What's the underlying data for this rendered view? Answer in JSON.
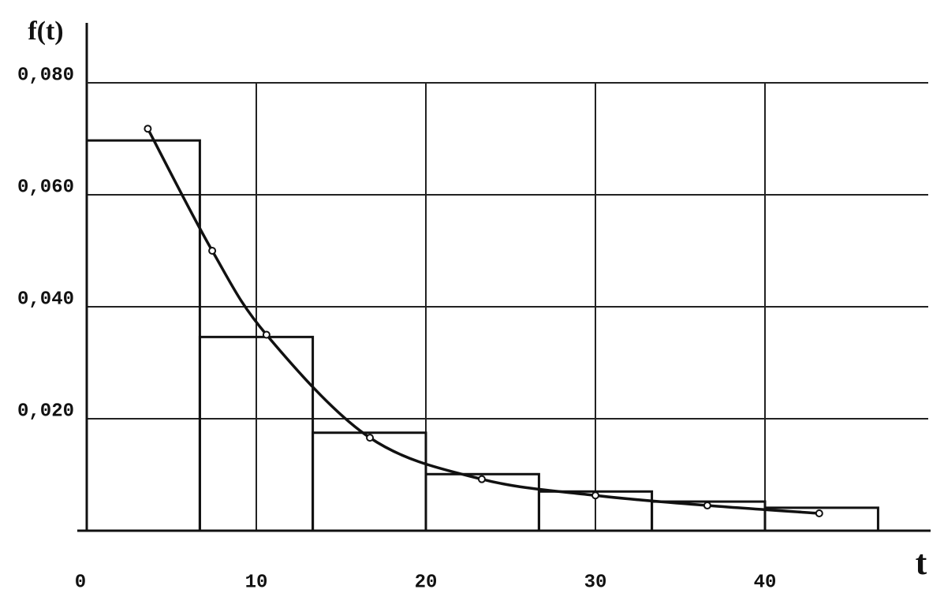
{
  "chart_data": {
    "type": "histogram",
    "y_label": "f(t)",
    "x_label": "t",
    "bins": [
      0,
      6.67,
      13.33,
      20,
      26.67,
      33.33,
      40,
      46.67
    ],
    "values": [
      0.0697,
      0.0346,
      0.0175,
      0.0101,
      0.007,
      0.0052,
      0.0041
    ],
    "curve": {
      "x": [
        3.6,
        7.4,
        10.6,
        16.7,
        23.3,
        30,
        36.6,
        43.2
      ],
      "y": [
        0.0718,
        0.05,
        0.035,
        0.0166,
        0.0092,
        0.0063,
        0.0045,
        0.0031
      ]
    },
    "color": "#111111",
    "xlim": [
      0,
      50
    ],
    "ylim": [
      0,
      0.09
    ],
    "xticks": [
      0,
      10,
      20,
      30,
      40
    ],
    "yticks": [
      {
        "value": 0.02,
        "label": "0,020"
      },
      {
        "value": 0.04,
        "label": "0,040"
      },
      {
        "value": 0.06,
        "label": "0,060"
      },
      {
        "value": 0.08,
        "label": "0,080"
      }
    ],
    "grid": true
  }
}
